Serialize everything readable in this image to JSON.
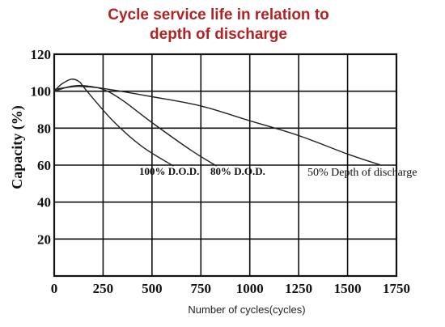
{
  "chart_data": {
    "type": "line",
    "title": [
      "Cycle service life in relation to",
      "depth of discharge"
    ],
    "xlabel": "Number of cycles(cycles)",
    "ylabel": "Capacity (%)",
    "xlim": [
      0,
      1750
    ],
    "ylim": [
      0,
      120
    ],
    "x_ticks": [
      "0",
      "250",
      "500",
      "750",
      "1000",
      "1250",
      "1500",
      "1750"
    ],
    "y_ticks": [
      "20",
      "40",
      "60",
      "80",
      "100",
      "120"
    ],
    "grid": true,
    "series": [
      {
        "name": "100% D.O.D.",
        "points": [
          [
            0,
            100
          ],
          [
            40,
            104
          ],
          [
            90,
            106.5
          ],
          [
            130,
            105
          ],
          [
            160,
            101
          ],
          [
            300,
            84
          ],
          [
            450,
            70
          ],
          [
            610,
            59.5
          ]
        ]
      },
      {
        "name": "80% D.O.D.",
        "points": [
          [
            0,
            100
          ],
          [
            80,
            102.5
          ],
          [
            150,
            103
          ],
          [
            250,
            101
          ],
          [
            350,
            95
          ],
          [
            500,
            83
          ],
          [
            700,
            68
          ],
          [
            830,
            59.5
          ]
        ]
      },
      {
        "name": "50% Depth of discharge",
        "points": [
          [
            0,
            101
          ],
          [
            100,
            102.5
          ],
          [
            150,
            102.5
          ],
          [
            250,
            101.5
          ],
          [
            500,
            97
          ],
          [
            750,
            92
          ],
          [
            1000,
            84
          ],
          [
            1250,
            76
          ],
          [
            1500,
            66
          ],
          [
            1670,
            60
          ]
        ]
      }
    ],
    "annotations": [
      {
        "text": "100% D.O.D.",
        "series": 0
      },
      {
        "text": "80% D.O.D.",
        "series": 1
      },
      {
        "text": "50% Depth of discharge",
        "series": 2
      }
    ]
  }
}
